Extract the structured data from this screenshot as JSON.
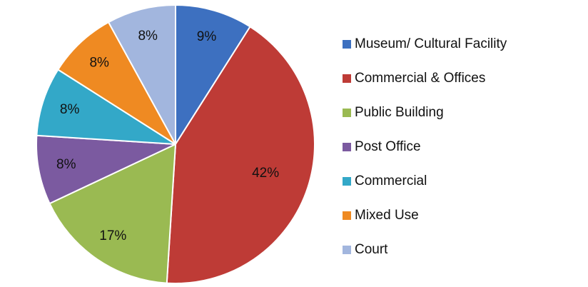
{
  "chart_data": {
    "type": "pie",
    "categories": [
      "Museum/ Cultural Facility",
      "Commercial & Offices",
      "Public Building",
      "Post Office",
      "Commercial",
      "Mixed Use",
      "Court"
    ],
    "values": [
      9,
      42,
      17,
      8,
      8,
      8,
      8
    ],
    "value_labels": [
      "9%",
      "42%",
      "17%",
      "8%",
      "8%",
      "8%",
      "8%"
    ],
    "colors": [
      "#3d70c0",
      "#be3b36",
      "#9aba52",
      "#7b5aa0",
      "#33a8c8",
      "#ef8a22",
      "#a2b6de"
    ],
    "legend": "right"
  }
}
